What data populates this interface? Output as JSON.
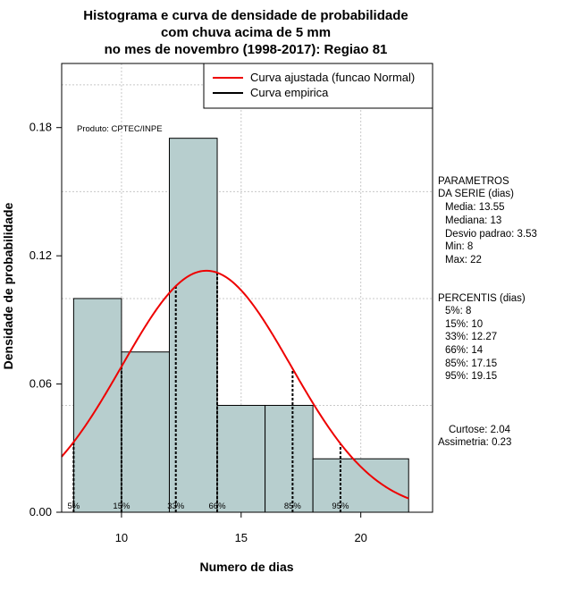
{
  "chart_data": {
    "type": "histogram",
    "title": [
      "Histograma e curva de densidade de probabilidade",
      "com chuva acima de 5 mm",
      "no mes de novembro (1998-2017): Regiao 81"
    ],
    "xlabel": "Numero de dias",
    "ylabel": "Densidade de probabilidade",
    "xlim": [
      7.5,
      23
    ],
    "ylim": [
      0,
      0.21
    ],
    "xticks": [
      10,
      15,
      20
    ],
    "yticks": [
      0.0,
      0.06,
      0.12,
      0.18
    ],
    "ytick_labels": [
      "0.00",
      "0.06",
      "0.12",
      "0.18"
    ],
    "grid": true,
    "bars": [
      {
        "x0": 8,
        "x1": 10,
        "value": 0.1
      },
      {
        "x0": 10,
        "x1": 12,
        "value": 0.075
      },
      {
        "x0": 12,
        "x1": 14,
        "value": 0.175
      },
      {
        "x0": 14,
        "x1": 16,
        "value": 0.05
      },
      {
        "x0": 16,
        "x1": 18,
        "value": 0.05
      },
      {
        "x0": 18,
        "x1": 22,
        "value": 0.025
      }
    ],
    "bar_color": "#b7cece",
    "normal_curve": {
      "mean": 13.55,
      "sd": 3.53,
      "x_from": 7.5,
      "x_to": 22,
      "color": "#ee0000"
    },
    "percentile_lines": [
      {
        "label": "5%",
        "x": 8
      },
      {
        "label": "15%",
        "x": 10
      },
      {
        "label": "33%",
        "x": 12.27
      },
      {
        "label": "66%",
        "x": 14
      },
      {
        "label": "85%",
        "x": 17.15
      },
      {
        "label": "95%",
        "x": 19.15
      }
    ],
    "legend": {
      "position": "top-right",
      "entries": [
        {
          "label": "Curva ajustada (funcao Normal)",
          "color": "#ee0000"
        },
        {
          "label": "Curva empirica",
          "color": "#000000"
        }
      ]
    },
    "annotation": "Produto: CPTEC/INPE",
    "parametros": {
      "header": [
        "PARAMETROS",
        "DA SERIE (dias)"
      ],
      "lines": [
        "Media: 13.55",
        "Mediana: 13",
        "Desvio padrao: 3.53",
        "Min: 8",
        "Max: 22"
      ]
    },
    "percentis": {
      "header": "PERCENTIS (dias)",
      "lines": [
        "5%: 8",
        "15%: 10",
        "33%: 12.27",
        "66%: 14",
        "85%: 17.15",
        "95%: 19.15"
      ]
    },
    "shape": {
      "lines": [
        "Curtose: 2.04",
        "Assimetria: 0.23"
      ]
    }
  }
}
